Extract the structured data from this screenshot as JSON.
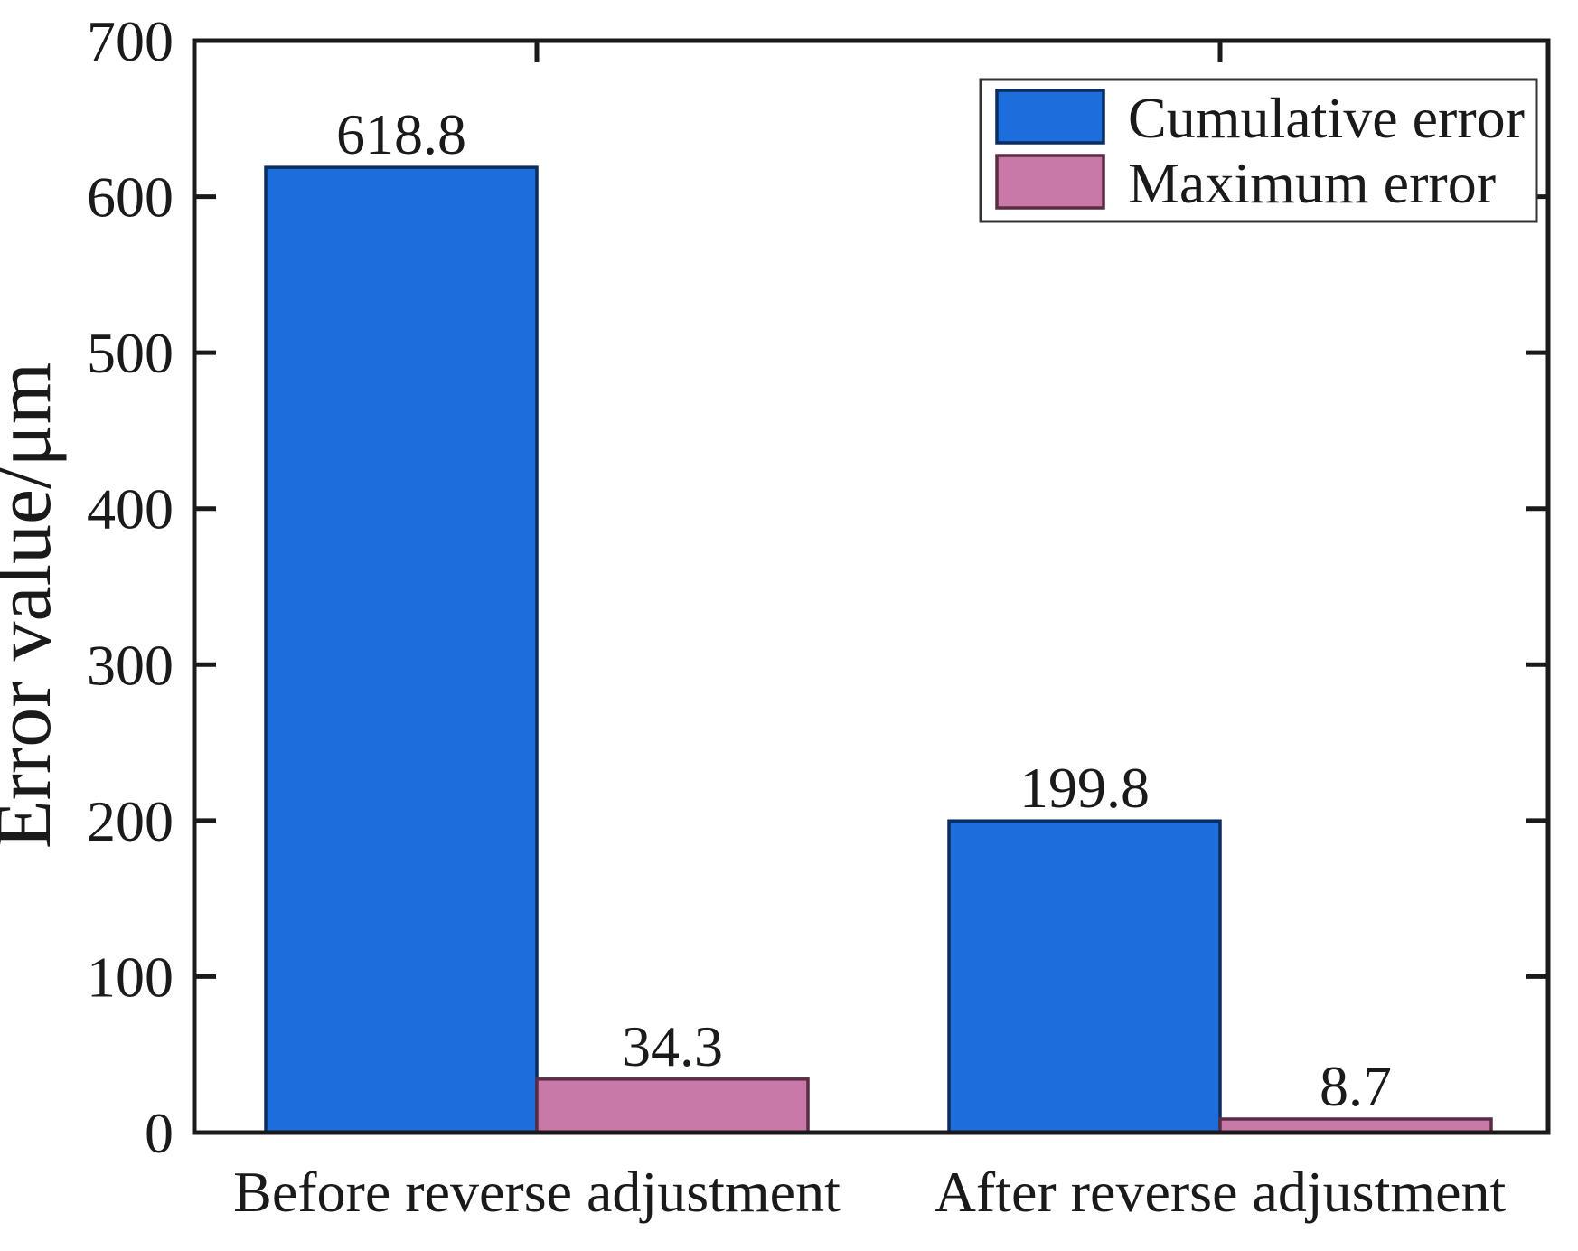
{
  "chart_data": {
    "type": "bar",
    "title": "",
    "xlabel": "",
    "ylabel": "Error value/μm",
    "ylim": [
      0,
      700
    ],
    "ytick_step": 100,
    "yticks": [
      0,
      100,
      200,
      300,
      400,
      500,
      600,
      700
    ],
    "grid": false,
    "legend_position": "top-right",
    "categories": [
      "Before reverse adjustment",
      "After reverse adjustment"
    ],
    "series": [
      {
        "name": "Cumulative error",
        "values": [
          618.8,
          199.8
        ],
        "labels": [
          "618.8",
          "199.8"
        ],
        "fill": "#1c6edc",
        "border": "#0d2d5e"
      },
      {
        "name": "Maximum error",
        "values": [
          34.3,
          8.7
        ],
        "labels": [
          "34.3",
          "8.7"
        ],
        "fill": "#c979a8",
        "border": "#5a2d44"
      }
    ],
    "axis_color": "#1a1a1a",
    "background": "#ffffff"
  }
}
